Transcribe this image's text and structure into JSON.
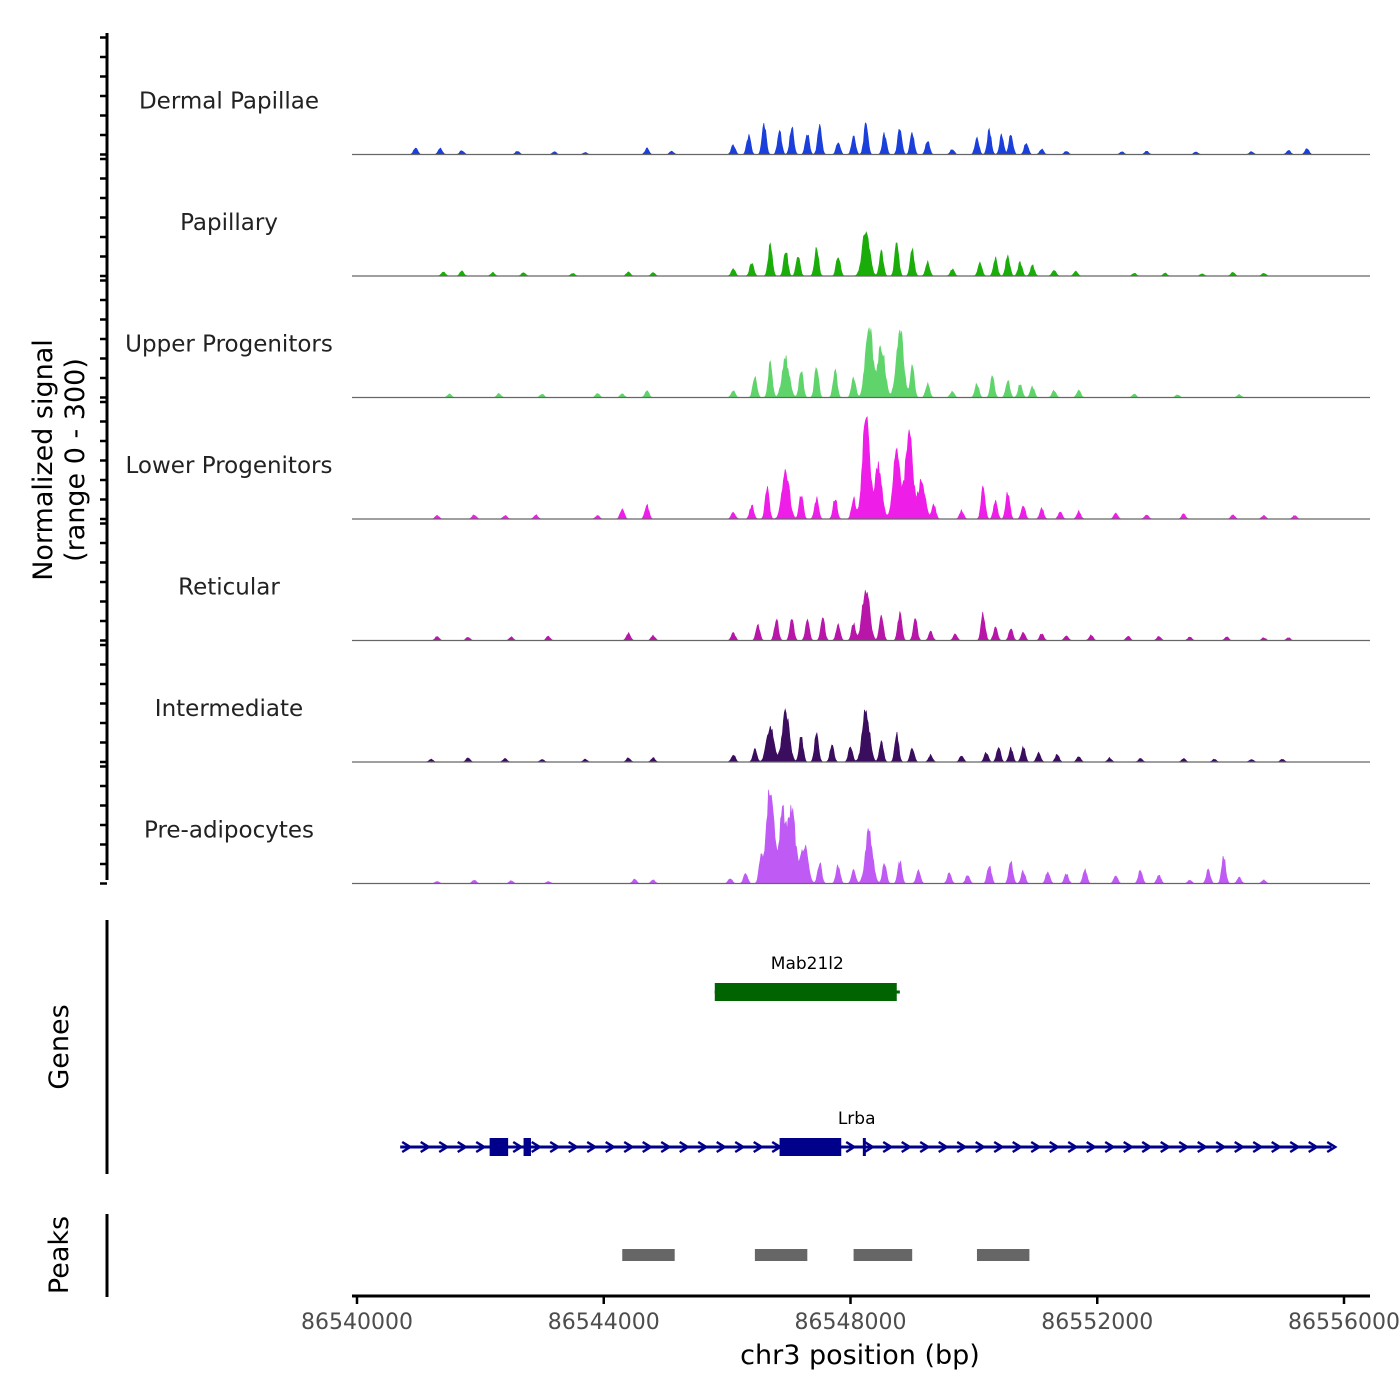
{
  "chart_data": {
    "type": "area",
    "title": "",
    "ylabel_line1": "Normalized signal",
    "ylabel_line2": "(range 0 - 300)",
    "ylim": [
      0,
      300
    ],
    "xlabel": "chr3 position (bp)",
    "xlim": [
      86540000,
      86556000
    ],
    "xticks": [
      86540000,
      86544000,
      86548000,
      86552000,
      86556000
    ],
    "xtick_labels": [
      "86540000",
      "86544000",
      "86548000",
      "86552000",
      "86556000"
    ],
    "genes_label": "Genes",
    "peaks_label": "Peaks",
    "tracks": [
      {
        "name": "Dermal Papillae",
        "color": "#1a3fdb",
        "seed": 11,
        "peaks": [
          [
            86540950,
            20
          ],
          [
            86541350,
            18
          ],
          [
            86541700,
            12
          ],
          [
            86542600,
            10
          ],
          [
            86543200,
            8
          ],
          [
            86543700,
            6
          ],
          [
            86544700,
            18
          ],
          [
            86545100,
            10
          ],
          [
            86546100,
            28
          ],
          [
            86546350,
            55
          ],
          [
            86546600,
            90
          ],
          [
            86546850,
            70
          ],
          [
            86547050,
            80
          ],
          [
            86547300,
            60
          ],
          [
            86547500,
            85
          ],
          [
            86547800,
            35
          ],
          [
            86548050,
            50
          ],
          [
            86548250,
            90
          ],
          [
            86548550,
            60
          ],
          [
            86548800,
            80
          ],
          [
            86549000,
            60
          ],
          [
            86549250,
            40
          ],
          [
            86549650,
            15
          ],
          [
            86550050,
            50
          ],
          [
            86550250,
            70
          ],
          [
            86550450,
            55
          ],
          [
            86550600,
            60
          ],
          [
            86550850,
            35
          ],
          [
            86551100,
            15
          ],
          [
            86551500,
            10
          ],
          [
            86552400,
            8
          ],
          [
            86552800,
            10
          ],
          [
            86553600,
            8
          ],
          [
            86554500,
            8
          ],
          [
            86555100,
            12
          ],
          [
            86555400,
            18
          ]
        ]
      },
      {
        "name": "Papillary",
        "color": "#1aad0a",
        "seed": 23,
        "peaks": [
          [
            86541400,
            12
          ],
          [
            86541700,
            14
          ],
          [
            86542200,
            10
          ],
          [
            86542700,
            10
          ],
          [
            86543500,
            8
          ],
          [
            86544400,
            12
          ],
          [
            86544800,
            10
          ],
          [
            86546100,
            20
          ],
          [
            86546400,
            40
          ],
          [
            86546700,
            90
          ],
          [
            86546950,
            75
          ],
          [
            86547150,
            60
          ],
          [
            86547450,
            80
          ],
          [
            86547800,
            60
          ],
          [
            86548250,
            140
          ],
          [
            86548500,
            70
          ],
          [
            86548750,
            100
          ],
          [
            86549000,
            75
          ],
          [
            86549250,
            40
          ],
          [
            86549650,
            20
          ],
          [
            86550100,
            40
          ],
          [
            86550350,
            50
          ],
          [
            86550550,
            60
          ],
          [
            86550750,
            40
          ],
          [
            86550950,
            30
          ],
          [
            86551300,
            18
          ],
          [
            86551650,
            14
          ],
          [
            86552600,
            8
          ],
          [
            86553100,
            8
          ],
          [
            86553700,
            6
          ],
          [
            86554200,
            10
          ],
          [
            86554700,
            8
          ]
        ]
      },
      {
        "name": "Upper Progenitors",
        "color": "#5fd46b",
        "seed": 37,
        "peaks": [
          [
            86541500,
            10
          ],
          [
            86542300,
            12
          ],
          [
            86543000,
            10
          ],
          [
            86543900,
            12
          ],
          [
            86544300,
            10
          ],
          [
            86544700,
            20
          ],
          [
            86546100,
            20
          ],
          [
            86546450,
            60
          ],
          [
            86546700,
            100
          ],
          [
            86546950,
            110
          ],
          [
            86547200,
            80
          ],
          [
            86547450,
            90
          ],
          [
            86547750,
            80
          ],
          [
            86548050,
            60
          ],
          [
            86548300,
            210
          ],
          [
            86548500,
            150
          ],
          [
            86548800,
            200
          ],
          [
            86549000,
            90
          ],
          [
            86549250,
            40
          ],
          [
            86549650,
            18
          ],
          [
            86550050,
            40
          ],
          [
            86550300,
            60
          ],
          [
            86550550,
            50
          ],
          [
            86550750,
            40
          ],
          [
            86550950,
            30
          ],
          [
            86551300,
            20
          ],
          [
            86551700,
            22
          ],
          [
            86552600,
            10
          ],
          [
            86553300,
            8
          ],
          [
            86554300,
            8
          ]
        ]
      },
      {
        "name": "Lower Progenitors",
        "color": "#ef1de8",
        "seed": 53,
        "peaks": [
          [
            86541300,
            10
          ],
          [
            86541900,
            12
          ],
          [
            86542400,
            10
          ],
          [
            86542900,
            12
          ],
          [
            86543900,
            10
          ],
          [
            86544300,
            30
          ],
          [
            86544700,
            40
          ],
          [
            86546100,
            20
          ],
          [
            86546400,
            40
          ],
          [
            86546650,
            90
          ],
          [
            86546950,
            140
          ],
          [
            86547200,
            70
          ],
          [
            86547450,
            60
          ],
          [
            86547750,
            60
          ],
          [
            86548050,
            60
          ],
          [
            86548250,
            300
          ],
          [
            86548450,
            150
          ],
          [
            86548750,
            210
          ],
          [
            86548950,
            250
          ],
          [
            86549150,
            110
          ],
          [
            86549350,
            40
          ],
          [
            86549800,
            25
          ],
          [
            86550150,
            90
          ],
          [
            86550350,
            50
          ],
          [
            86550550,
            80
          ],
          [
            86550800,
            40
          ],
          [
            86551100,
            30
          ],
          [
            86551400,
            20
          ],
          [
            86551700,
            22
          ],
          [
            86552300,
            16
          ],
          [
            86552800,
            12
          ],
          [
            86553400,
            14
          ],
          [
            86554200,
            12
          ],
          [
            86554700,
            10
          ],
          [
            86555200,
            10
          ]
        ]
      },
      {
        "name": "Reticular",
        "color": "#b716a9",
        "seed": 71,
        "peaks": [
          [
            86541300,
            12
          ],
          [
            86541800,
            10
          ],
          [
            86542500,
            10
          ],
          [
            86543100,
            12
          ],
          [
            86544400,
            22
          ],
          [
            86544800,
            14
          ],
          [
            86546100,
            22
          ],
          [
            86546500,
            45
          ],
          [
            86546800,
            60
          ],
          [
            86547050,
            60
          ],
          [
            86547300,
            55
          ],
          [
            86547550,
            65
          ],
          [
            86547800,
            45
          ],
          [
            86548050,
            50
          ],
          [
            86548250,
            155
          ],
          [
            86548500,
            75
          ],
          [
            86548800,
            80
          ],
          [
            86549050,
            60
          ],
          [
            86549300,
            25
          ],
          [
            86549700,
            18
          ],
          [
            86550150,
            80
          ],
          [
            86550350,
            40
          ],
          [
            86550600,
            35
          ],
          [
            86550800,
            25
          ],
          [
            86551100,
            20
          ],
          [
            86551500,
            14
          ],
          [
            86551900,
            16
          ],
          [
            86552500,
            12
          ],
          [
            86553000,
            12
          ],
          [
            86553500,
            10
          ],
          [
            86554100,
            10
          ],
          [
            86554700,
            8
          ],
          [
            86555100,
            8
          ]
        ]
      },
      {
        "name": "Intermediate",
        "color": "#3b0d5e",
        "seed": 89,
        "peaks": [
          [
            86541200,
            8
          ],
          [
            86541800,
            12
          ],
          [
            86542400,
            10
          ],
          [
            86543000,
            8
          ],
          [
            86543700,
            8
          ],
          [
            86544400,
            12
          ],
          [
            86544800,
            12
          ],
          [
            86546100,
            22
          ],
          [
            86546450,
            35
          ],
          [
            86546700,
            110
          ],
          [
            86546950,
            140
          ],
          [
            86547200,
            75
          ],
          [
            86547450,
            80
          ],
          [
            86547700,
            50
          ],
          [
            86548000,
            45
          ],
          [
            86548250,
            150
          ],
          [
            86548500,
            60
          ],
          [
            86548750,
            80
          ],
          [
            86549000,
            40
          ],
          [
            86549300,
            20
          ],
          [
            86549800,
            18
          ],
          [
            86550200,
            28
          ],
          [
            86550400,
            45
          ],
          [
            86550600,
            40
          ],
          [
            86550800,
            45
          ],
          [
            86551050,
            28
          ],
          [
            86551350,
            22
          ],
          [
            86551700,
            16
          ],
          [
            86552200,
            12
          ],
          [
            86552700,
            10
          ],
          [
            86553400,
            10
          ],
          [
            86553900,
            8
          ],
          [
            86554500,
            8
          ],
          [
            86555000,
            8
          ]
        ]
      },
      {
        "name": "Pre-adipocytes",
        "color": "#bf5af5",
        "seed": 101,
        "peaks": [
          [
            86541300,
            6
          ],
          [
            86541900,
            10
          ],
          [
            86542500,
            8
          ],
          [
            86543100,
            6
          ],
          [
            86544500,
            12
          ],
          [
            86544800,
            10
          ],
          [
            86546050,
            15
          ],
          [
            86546300,
            30
          ],
          [
            86546550,
            80
          ],
          [
            86546700,
            290
          ],
          [
            86546900,
            200
          ],
          [
            86547050,
            210
          ],
          [
            86547250,
            110
          ],
          [
            86547500,
            60
          ],
          [
            86547800,
            55
          ],
          [
            86548050,
            40
          ],
          [
            86548300,
            150
          ],
          [
            86548550,
            60
          ],
          [
            86548800,
            65
          ],
          [
            86549100,
            40
          ],
          [
            86549600,
            30
          ],
          [
            86549900,
            25
          ],
          [
            86550250,
            55
          ],
          [
            86550600,
            65
          ],
          [
            86550800,
            35
          ],
          [
            86551200,
            35
          ],
          [
            86551500,
            28
          ],
          [
            86551800,
            40
          ],
          [
            86552300,
            22
          ],
          [
            86552700,
            40
          ],
          [
            86553000,
            25
          ],
          [
            86553500,
            10
          ],
          [
            86553800,
            40
          ],
          [
            86554050,
            75
          ],
          [
            86554300,
            18
          ],
          [
            86554700,
            10
          ]
        ]
      }
    ],
    "genes": [
      {
        "name": "Mab21l2",
        "color": "#006400",
        "strand": "-",
        "start": 86545800,
        "end": 86548800,
        "exons": [
          [
            86545800,
            86548750
          ]
        ]
      },
      {
        "name": "Lrba",
        "color": "#00008b",
        "strand": "+",
        "start": 86540700,
        "end": 86555800,
        "exons": [
          [
            86542150,
            86542450
          ],
          [
            86542700,
            86542820
          ],
          [
            86546850,
            86547850
          ],
          [
            86548200,
            86548240
          ]
        ]
      }
    ],
    "peaks": [
      [
        86544300,
        86545150
      ],
      [
        86546450,
        86547300
      ],
      [
        86548050,
        86549000
      ],
      [
        86550050,
        86550900
      ]
    ]
  }
}
